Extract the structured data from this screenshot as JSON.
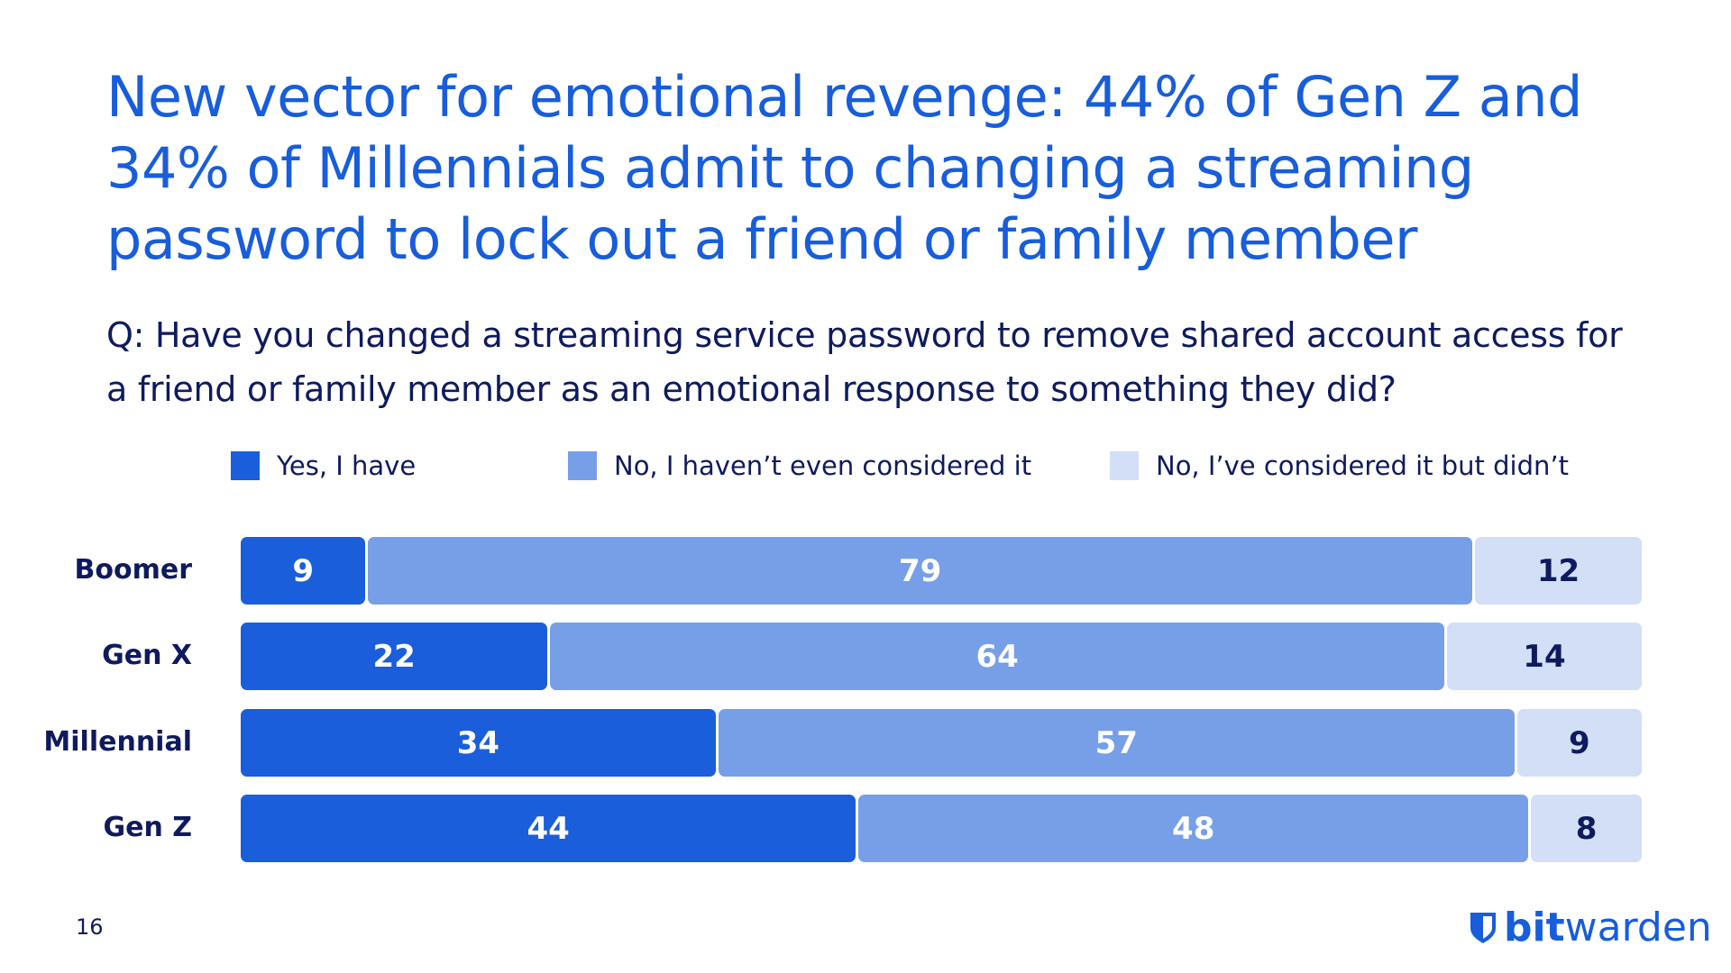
{
  "title": "New vector for emotional revenge: 44% of Gen Z and 34% of Millennials admit to changing a streaming password to lock out a friend or family member",
  "question": "Q: Have you changed a streaming service password to remove shared account access for a friend or family member as an emotional response to something they did?",
  "page_number": "16",
  "logo": {
    "bold": "bit",
    "light": "warden",
    "icon": "shield-icon"
  },
  "colors": {
    "yes": "#1a5edb",
    "not_considered": "#769fe8",
    "considered": "#d3dff7",
    "text": "#0f1a5e",
    "accent": "#175ddc"
  },
  "chart_data": {
    "type": "bar",
    "orientation": "horizontal",
    "stacked": true,
    "categories": [
      "Boomer",
      "Gen X",
      "Millennial",
      "Gen Z"
    ],
    "series": [
      {
        "name": "Yes, I have",
        "values": [
          9,
          22,
          34,
          44
        ]
      },
      {
        "name": "No, I haven’t even considered it",
        "values": [
          79,
          64,
          57,
          48
        ]
      },
      {
        "name": "No, I’ve considered it but didn’t",
        "values": [
          12,
          14,
          9,
          8
        ]
      }
    ],
    "xlim": [
      0,
      100
    ],
    "grid": false,
    "legend_placement": "top"
  }
}
